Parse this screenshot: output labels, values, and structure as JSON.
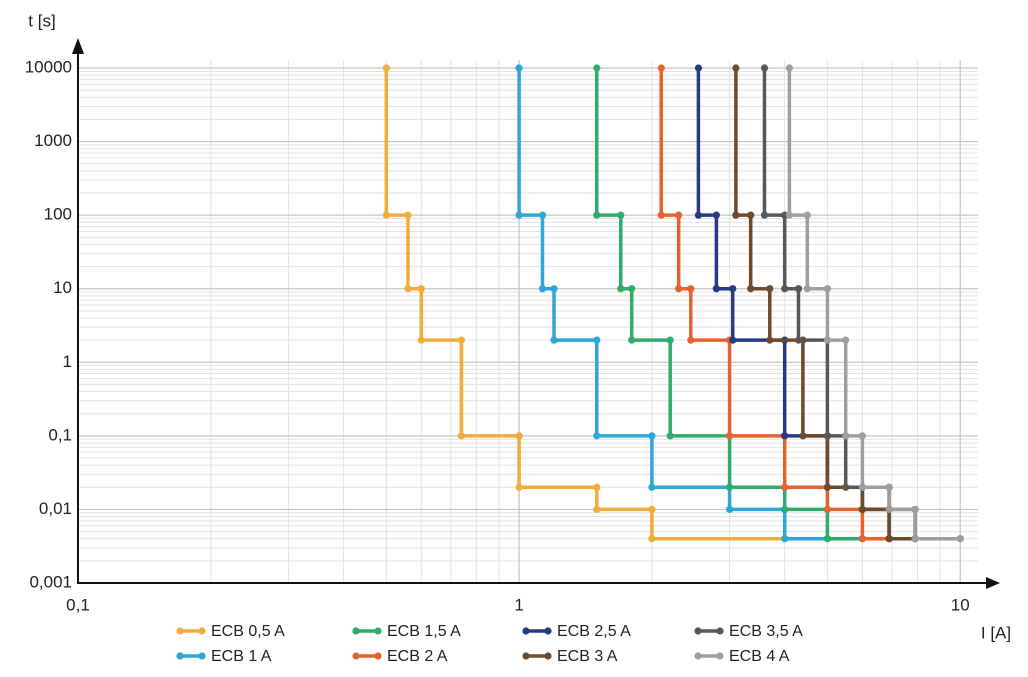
{
  "chart_data": {
    "type": "step-line",
    "x_label": "I [A]",
    "y_label": "t [s]",
    "x_scale": "log",
    "y_scale": "log",
    "grid": true,
    "xlim": [
      0.1,
      11.5
    ],
    "ylim": [
      0.001,
      10000
    ],
    "xticks": [
      {
        "value": 0.1,
        "label": "0,1"
      },
      1,
      10
    ],
    "yticks": [
      {
        "value": 0.001,
        "label": "0,001"
      },
      {
        "value": 0.01,
        "label": "0,01"
      },
      {
        "value": 0.1,
        "label": "0,1"
      },
      1,
      10,
      100,
      1000,
      10000
    ],
    "series": [
      {
        "name": "ECB 0,5 A",
        "color": "#f2ac3c",
        "x": [
          0.5,
          0.5,
          0.56,
          0.56,
          0.6,
          0.6,
          0.74,
          0.74,
          1,
          1,
          1.5,
          1.5,
          2,
          2,
          4
        ],
        "y": [
          10000,
          100,
          100,
          10,
          10,
          2,
          2,
          0.1,
          0.1,
          0.02,
          0.02,
          0.01,
          0.01,
          0.004,
          0.004
        ]
      },
      {
        "name": "ECB 1 A",
        "color": "#2ea6d8",
        "x": [
          1,
          1,
          1.13,
          1.13,
          1.2,
          1.2,
          1.5,
          1.5,
          2,
          2,
          3,
          3,
          4,
          4,
          5
        ],
        "y": [
          10000,
          100,
          100,
          10,
          10,
          2,
          2,
          0.1,
          0.1,
          0.02,
          0.02,
          0.01,
          0.01,
          0.004,
          0.004
        ]
      },
      {
        "name": "ECB 1,5 A",
        "color": "#2fac6b",
        "x": [
          1.5,
          1.5,
          1.7,
          1.7,
          1.8,
          1.8,
          2.2,
          2.2,
          3,
          3,
          4,
          4,
          5,
          5,
          6
        ],
        "y": [
          10000,
          100,
          100,
          10,
          10,
          2,
          2,
          0.1,
          0.1,
          0.02,
          0.02,
          0.01,
          0.01,
          0.004,
          0.004
        ]
      },
      {
        "name": "ECB 2 A",
        "color": "#e8622e",
        "x": [
          2.1,
          2.1,
          2.3,
          2.3,
          2.45,
          2.45,
          3,
          3,
          4,
          4,
          5,
          5,
          6,
          6,
          6.9
        ],
        "y": [
          10000,
          100,
          100,
          10,
          10,
          2,
          2,
          0.1,
          0.1,
          0.02,
          0.02,
          0.01,
          0.01,
          0.004,
          0.004
        ]
      },
      {
        "name": "ECB 2,5 A",
        "color": "#243b82",
        "x": [
          2.55,
          2.55,
          2.8,
          2.8,
          3.05,
          3.05,
          4,
          4,
          5,
          5,
          6,
          6,
          6.9,
          6.9,
          7.9
        ],
        "y": [
          10000,
          100,
          100,
          10,
          10,
          2,
          2,
          0.1,
          0.1,
          0.02,
          0.02,
          0.01,
          0.01,
          0.004,
          0.004
        ]
      },
      {
        "name": "ECB 3 A",
        "color": "#6e4a2a",
        "x": [
          3.1,
          3.1,
          3.35,
          3.35,
          3.7,
          3.7,
          4.4,
          4.4,
          5,
          5,
          6,
          6,
          6.9,
          6.9,
          7.9
        ],
        "y": [
          10000,
          100,
          100,
          10,
          10,
          2,
          2,
          0.1,
          0.1,
          0.02,
          0.02,
          0.01,
          0.01,
          0.004,
          0.004
        ]
      },
      {
        "name": "ECB 3,5 A",
        "color": "#575757",
        "x": [
          3.6,
          3.6,
          4,
          4,
          4.3,
          4.3,
          5,
          5,
          5.5,
          5.5,
          6.9,
          6.9,
          7.9,
          7.9,
          10
        ],
        "y": [
          10000,
          100,
          100,
          10,
          10,
          2,
          2,
          0.1,
          0.1,
          0.02,
          0.02,
          0.01,
          0.01,
          0.004,
          0.004
        ]
      },
      {
        "name": "ECB 4 A",
        "color": "#9e9e9e",
        "x": [
          4.1,
          4.1,
          4.5,
          4.5,
          5,
          5,
          5.5,
          5.5,
          6,
          6,
          6.9,
          6.9,
          7.9,
          7.9,
          10
        ],
        "y": [
          10000,
          100,
          100,
          10,
          10,
          2,
          2,
          0.1,
          0.1,
          0.02,
          0.02,
          0.01,
          0.01,
          0.004,
          0.004
        ]
      }
    ]
  }
}
